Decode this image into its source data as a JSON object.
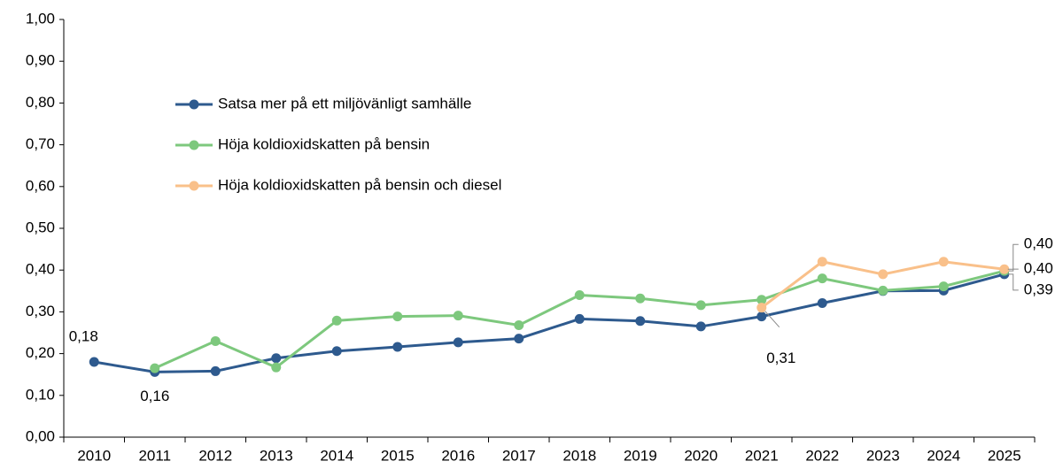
{
  "chart_data": {
    "type": "line",
    "categories": [
      "2010",
      "2011",
      "2012",
      "2013",
      "2014",
      "2015",
      "2016",
      "2017",
      "2018",
      "2019",
      "2020",
      "2021",
      "2022",
      "2023",
      "2024",
      "2025"
    ],
    "series": [
      {
        "name": "Satsa mer på ett miljövänligt samhälle",
        "color": "#2e5a8e",
        "values": [
          0.18,
          0.156,
          0.158,
          0.189,
          0.206,
          0.216,
          0.227,
          0.236,
          0.283,
          0.278,
          0.265,
          0.289,
          0.321,
          0.35,
          0.351,
          0.39
        ],
        "value_labels": [
          "0,18",
          "0,16",
          null,
          null,
          null,
          null,
          null,
          null,
          null,
          null,
          null,
          null,
          null,
          null,
          null,
          "0,39"
        ]
      },
      {
        "name": "Höja koldioxidskatten på bensin",
        "color": "#7dc87d",
        "values": [
          null,
          0.165,
          0.23,
          0.167,
          0.279,
          0.289,
          0.291,
          0.268,
          0.34,
          0.332,
          0.316,
          0.329,
          0.38,
          0.351,
          0.361,
          0.398
        ],
        "value_labels": [
          null,
          null,
          null,
          null,
          null,
          null,
          null,
          null,
          null,
          null,
          null,
          null,
          null,
          null,
          null,
          "0,40"
        ]
      },
      {
        "name": "Höja koldioxidskatten på bensin och diesel",
        "color": "#f9c08a",
        "values": [
          null,
          null,
          null,
          null,
          null,
          null,
          null,
          null,
          null,
          null,
          null,
          0.31,
          0.42,
          0.39,
          0.42,
          0.402
        ],
        "value_labels": [
          null,
          null,
          null,
          null,
          null,
          null,
          null,
          null,
          null,
          null,
          null,
          "0,31",
          null,
          null,
          null,
          "0,40"
        ]
      }
    ],
    "ylim": [
      0,
      1
    ],
    "yticks": [
      {
        "value": 0,
        "label": "0,00"
      },
      {
        "value": 0.1,
        "label": "0,10"
      },
      {
        "value": 0.2,
        "label": "0,20"
      },
      {
        "value": 0.3,
        "label": "0,30"
      },
      {
        "value": 0.4,
        "label": "0,40"
      },
      {
        "value": 0.5,
        "label": "0,50"
      },
      {
        "value": 0.6,
        "label": "0,60"
      },
      {
        "value": 0.7,
        "label": "0,70"
      },
      {
        "value": 0.8,
        "label": "0,80"
      },
      {
        "value": 0.9,
        "label": "0,90"
      },
      {
        "value": 1,
        "label": "1,00"
      }
    ],
    "grid": false
  }
}
